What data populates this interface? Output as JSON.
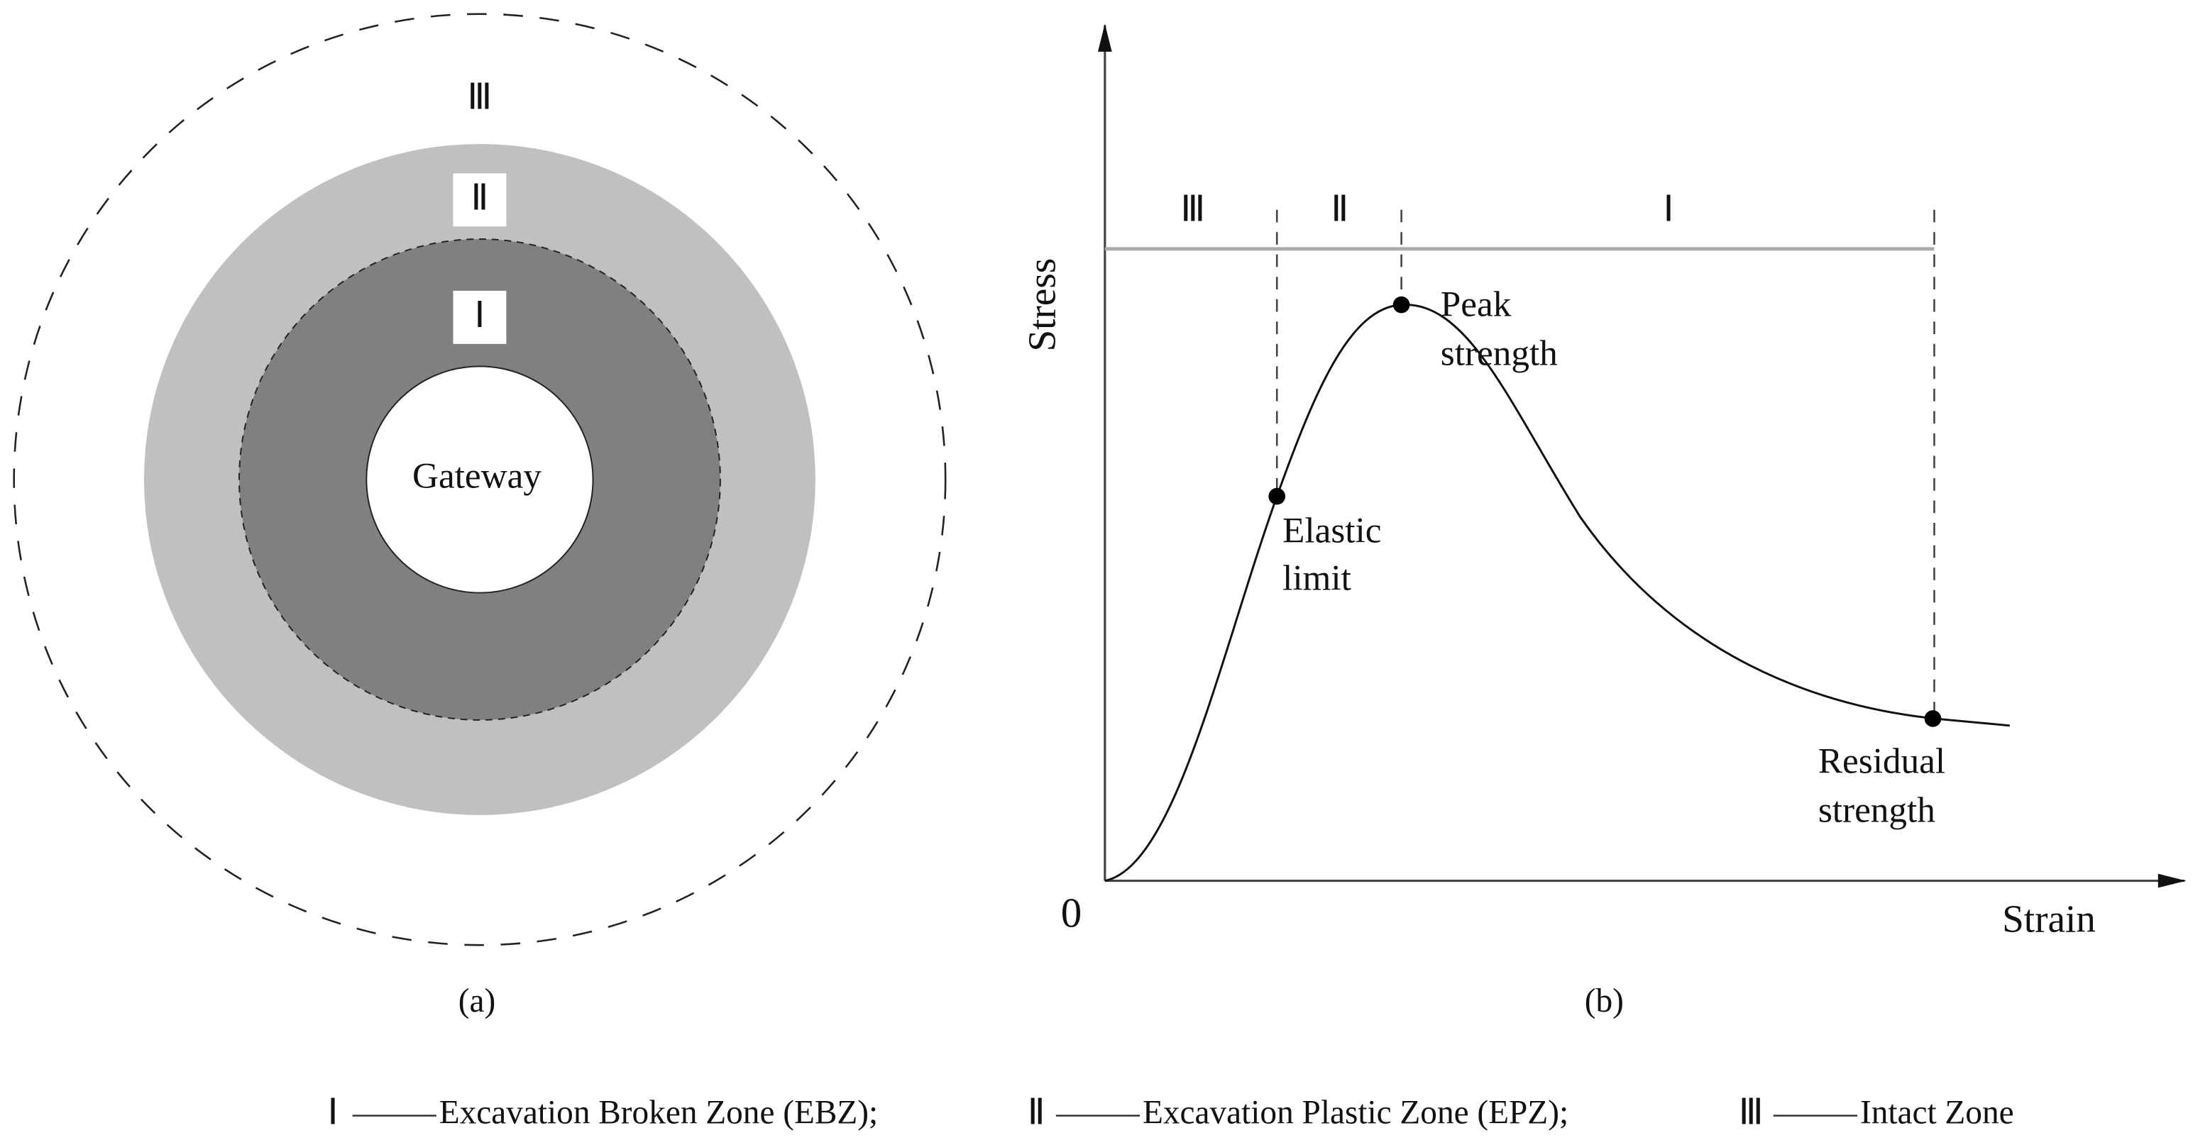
{
  "panel_a": {
    "zone_labels": [
      "Ⅲ",
      "Ⅱ",
      "Ⅰ"
    ],
    "center": "Gateway",
    "caption": "(a)"
  },
  "panel_b": {
    "y_axis_label": "Stress",
    "x_axis_label": "Strain",
    "origin": "0",
    "zone_labels": [
      "Ⅲ",
      "Ⅱ",
      "Ⅰ"
    ],
    "points": [
      [
        "Elastic",
        "limit"
      ],
      [
        "Peak",
        "strength"
      ],
      [
        "Residual",
        "strength"
      ]
    ],
    "caption": "(b)"
  },
  "legend": [
    {
      "symbol": "Ⅰ",
      "text": "Excavation Broken Zone (EBZ);"
    },
    {
      "symbol": "Ⅱ",
      "text": "Excavation Plastic Zone (EPZ);"
    },
    {
      "symbol": "Ⅲ",
      "text": "Intact Zone"
    }
  ]
}
